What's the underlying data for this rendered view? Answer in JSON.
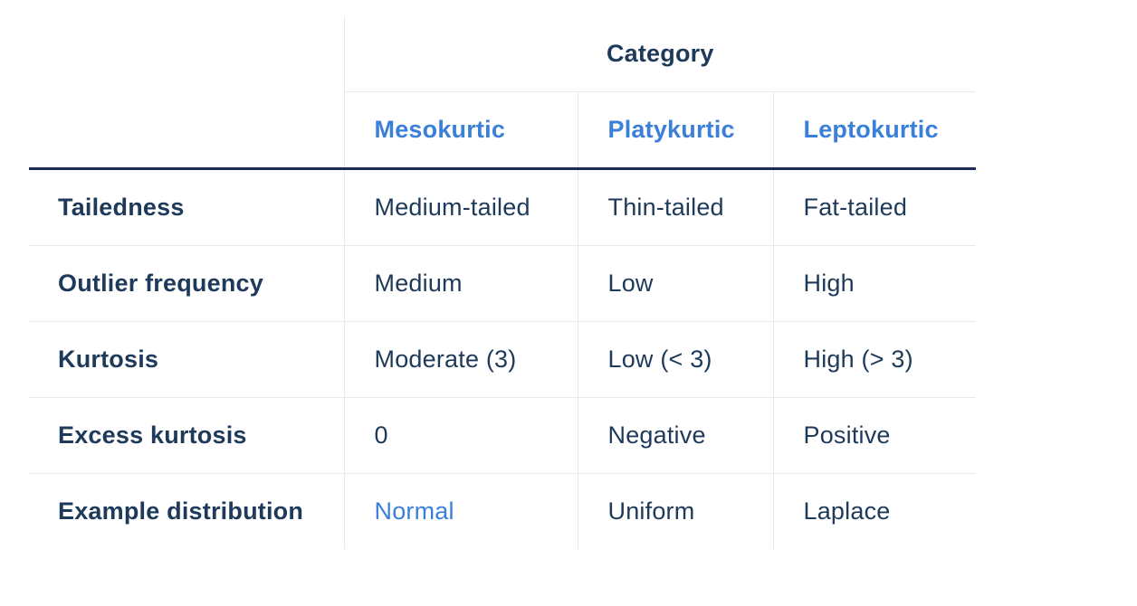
{
  "table": {
    "group_header": "Category",
    "columns": [
      "Mesokurtic",
      "Platykurtic",
      "Leptokurtic"
    ],
    "rows": [
      {
        "label": "Tailedness",
        "cells": [
          "Medium-tailed",
          "Thin-tailed",
          "Fat-tailed"
        ]
      },
      {
        "label": "Outlier frequency",
        "cells": [
          "Medium",
          "Low",
          "High"
        ]
      },
      {
        "label": "Kurtosis",
        "cells": [
          "Moderate (3)",
          "Low (< 3)",
          "High (> 3)"
        ]
      },
      {
        "label": "Excess kurtosis",
        "cells": [
          "0",
          "Negative",
          "Positive"
        ]
      },
      {
        "label": "Example distribution",
        "cells": [
          "Normal",
          "Uniform",
          "Laplace"
        ]
      }
    ]
  },
  "colors": {
    "text": "#1e3a5a",
    "accent_link": "#3a7fd8",
    "header_rule": "#1e2a55",
    "grid": "#e6e9ee"
  }
}
